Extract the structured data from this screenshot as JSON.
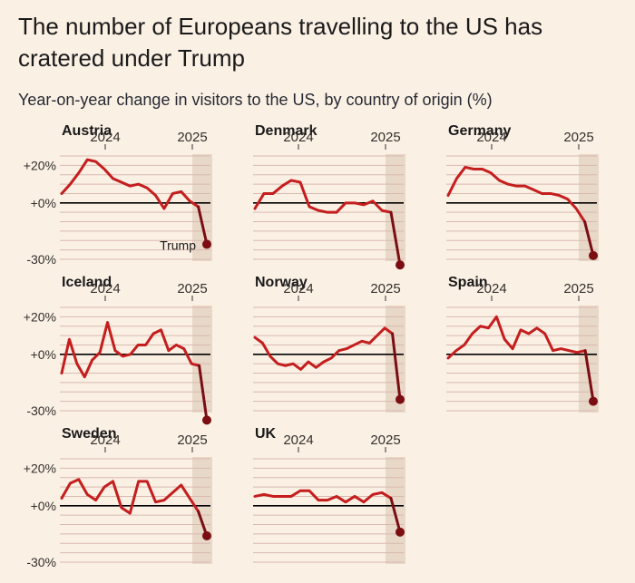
{
  "title": "The number of Europeans travelling to the US has cratered under Trump",
  "subtitle": "Year-on-year change in visitors to the US, by country of origin (%)",
  "colors": {
    "background": "#fbf0e4",
    "line": "#c41e1e",
    "line_dark": "#7a0e12",
    "shade": "#e8d8c8",
    "grid": "#d9b9b0",
    "zero": "#000000"
  },
  "chart_data": {
    "type": "line",
    "x_start": "2023-07",
    "x_end": "2025-03",
    "x_ticks": [
      {
        "label": "2024",
        "value": "2024-01"
      },
      {
        "label": "2025",
        "value": "2025-01"
      }
    ],
    "y_ticks": [
      {
        "label": "+20%",
        "value": 20
      },
      {
        "label": "+0%",
        "value": 0
      },
      {
        "label": "-30%",
        "value": -30
      }
    ],
    "ylim": [
      -30,
      25
    ],
    "highlight_period": {
      "from": "2025-01",
      "to": "2025-03",
      "label": "Trump"
    },
    "annotation": {
      "text": "Trump",
      "panel": "Austria"
    },
    "series": [
      {
        "name": "Austria",
        "values": [
          5,
          10,
          16,
          23,
          22,
          18,
          13,
          11,
          9,
          10,
          8,
          4,
          -3,
          5,
          6,
          1,
          -2,
          -22
        ]
      },
      {
        "name": "Denmark",
        "values": [
          -3,
          5,
          5,
          9,
          12,
          11,
          -2,
          -4,
          -5,
          -5,
          0,
          0,
          -1,
          1,
          -4,
          -5,
          -33
        ]
      },
      {
        "name": "Germany",
        "values": [
          4,
          13,
          19,
          18,
          18,
          16,
          12,
          10,
          9,
          9,
          7,
          5,
          5,
          4,
          2,
          -3,
          -10,
          -28
        ]
      },
      {
        "name": "Iceland",
        "values": [
          -10,
          8,
          -5,
          -12,
          -3,
          1,
          17,
          2,
          -1,
          0,
          5,
          5,
          11,
          13,
          2,
          5,
          3,
          -5,
          -6,
          -35
        ]
      },
      {
        "name": "Norway",
        "values": [
          9,
          6,
          -1,
          -5,
          -6,
          -5,
          -8,
          -4,
          -7,
          -4,
          -2,
          2,
          3,
          5,
          7,
          6,
          10,
          14,
          11,
          -24
        ]
      },
      {
        "name": "Spain",
        "values": [
          -2,
          2,
          5,
          11,
          15,
          14,
          20,
          8,
          3,
          13,
          11,
          14,
          11,
          2,
          3,
          2,
          1,
          2,
          -25
        ]
      },
      {
        "name": "Sweden",
        "values": [
          4,
          12,
          14,
          6,
          3,
          10,
          13,
          -1,
          -4,
          13,
          13,
          2,
          3,
          7,
          11,
          4,
          -3,
          -16
        ]
      },
      {
        "name": "UK",
        "values": [
          5,
          6,
          5,
          5,
          5,
          8,
          8,
          3,
          3,
          5,
          2,
          5,
          2,
          6,
          7,
          4,
          -14
        ]
      }
    ]
  }
}
